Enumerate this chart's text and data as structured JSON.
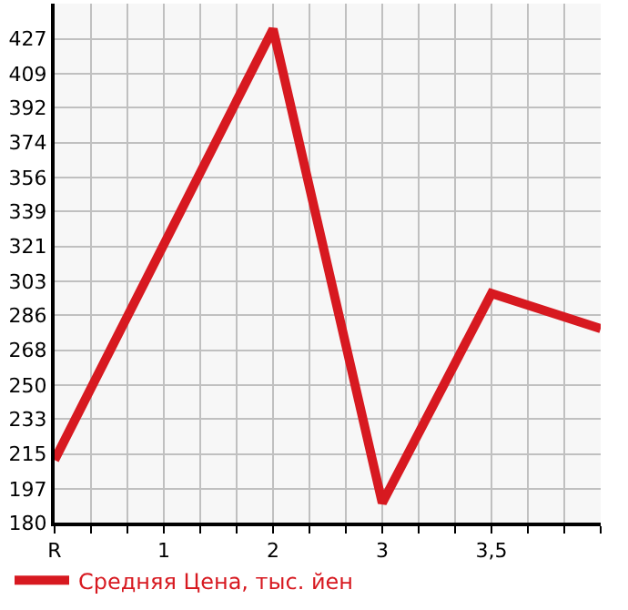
{
  "chart_data": {
    "type": "line",
    "categories": [
      "R",
      "1",
      "2",
      "3",
      "3,5",
      null
    ],
    "series": [
      {
        "name": "Средняя Цена, тыс. йен",
        "color": "#d71920",
        "values": [
          212,
          null,
          432,
          190,
          297,
          279
        ]
      }
    ],
    "ylim": [
      180,
      445
    ],
    "yticks": [
      180,
      197,
      215,
      233,
      250,
      268,
      286,
      303,
      321,
      339,
      356,
      374,
      392,
      409,
      427
    ],
    "grid": true,
    "legend": "bottom left",
    "marker": "none",
    "line_style": "solid"
  }
}
